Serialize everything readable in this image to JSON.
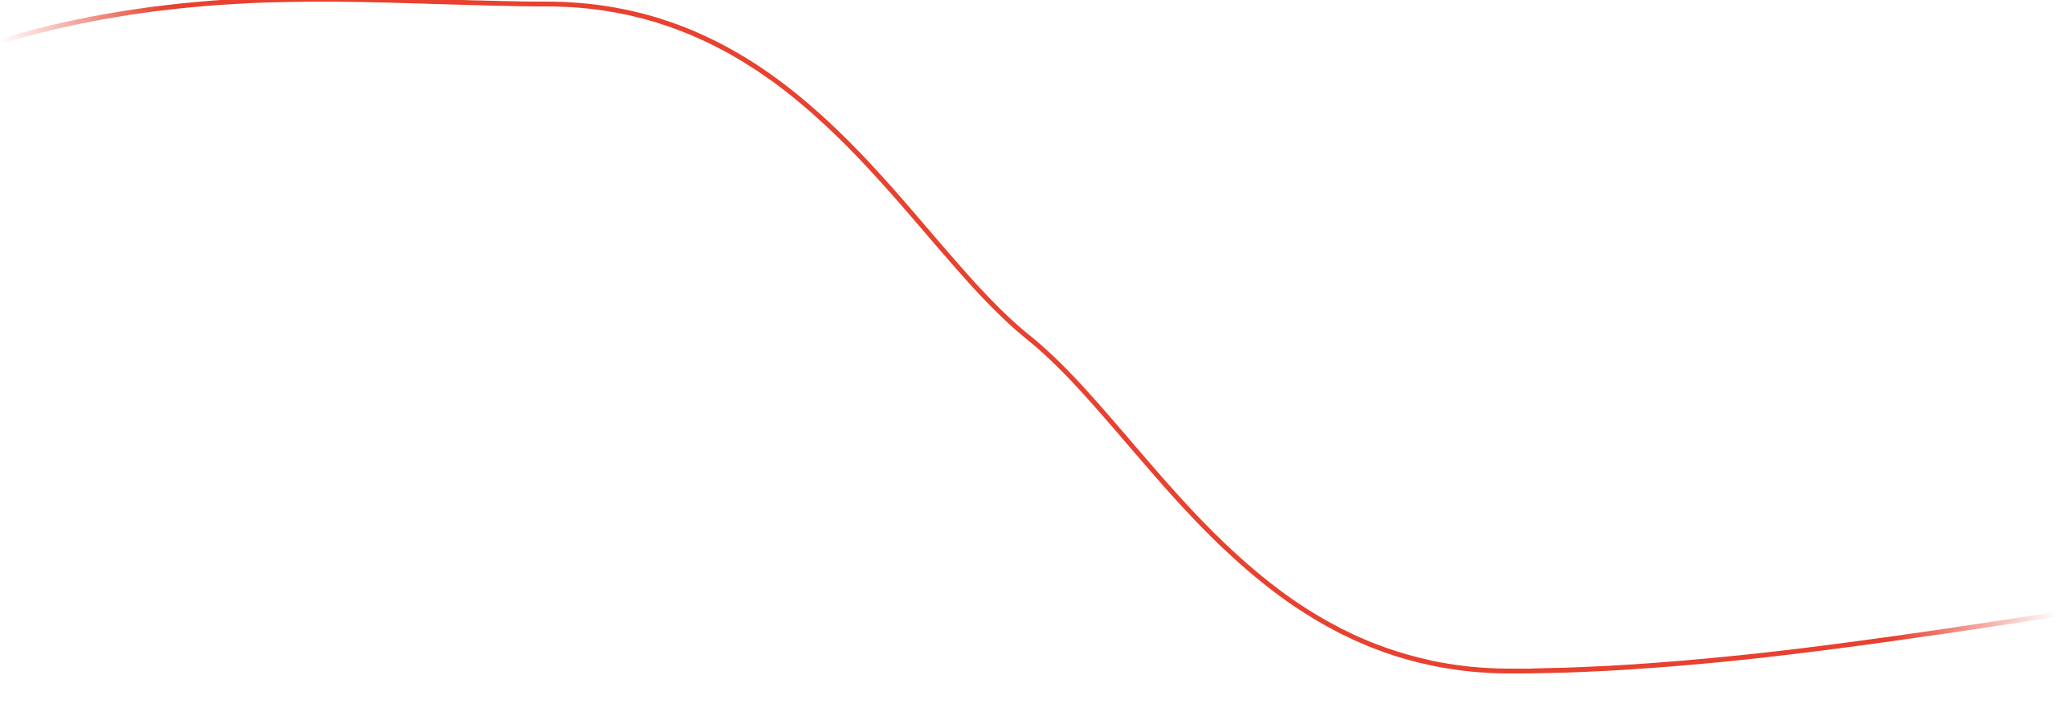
{
  "decoration": {
    "shape": "wave-line",
    "stroke_color": "#e8412f",
    "background_color": "#ffffff",
    "ends_fade": true
  }
}
